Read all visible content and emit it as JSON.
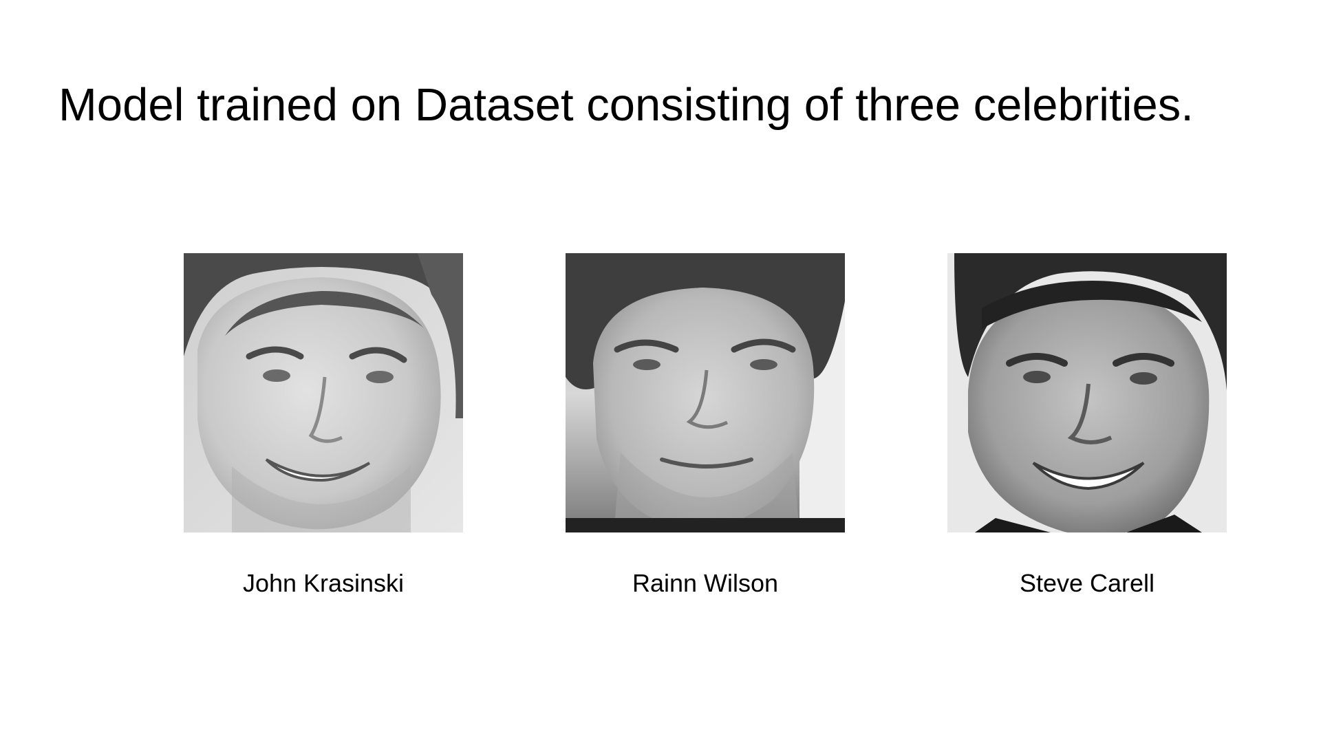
{
  "slide": {
    "title": "Model trained on Dataset consisting of three celebrities."
  },
  "celebrities": [
    {
      "name": "John Krasinski"
    },
    {
      "name": "Rainn Wilson"
    },
    {
      "name": "Steve Carell"
    }
  ],
  "colors": {
    "background": "#ffffff",
    "text": "#000000"
  }
}
